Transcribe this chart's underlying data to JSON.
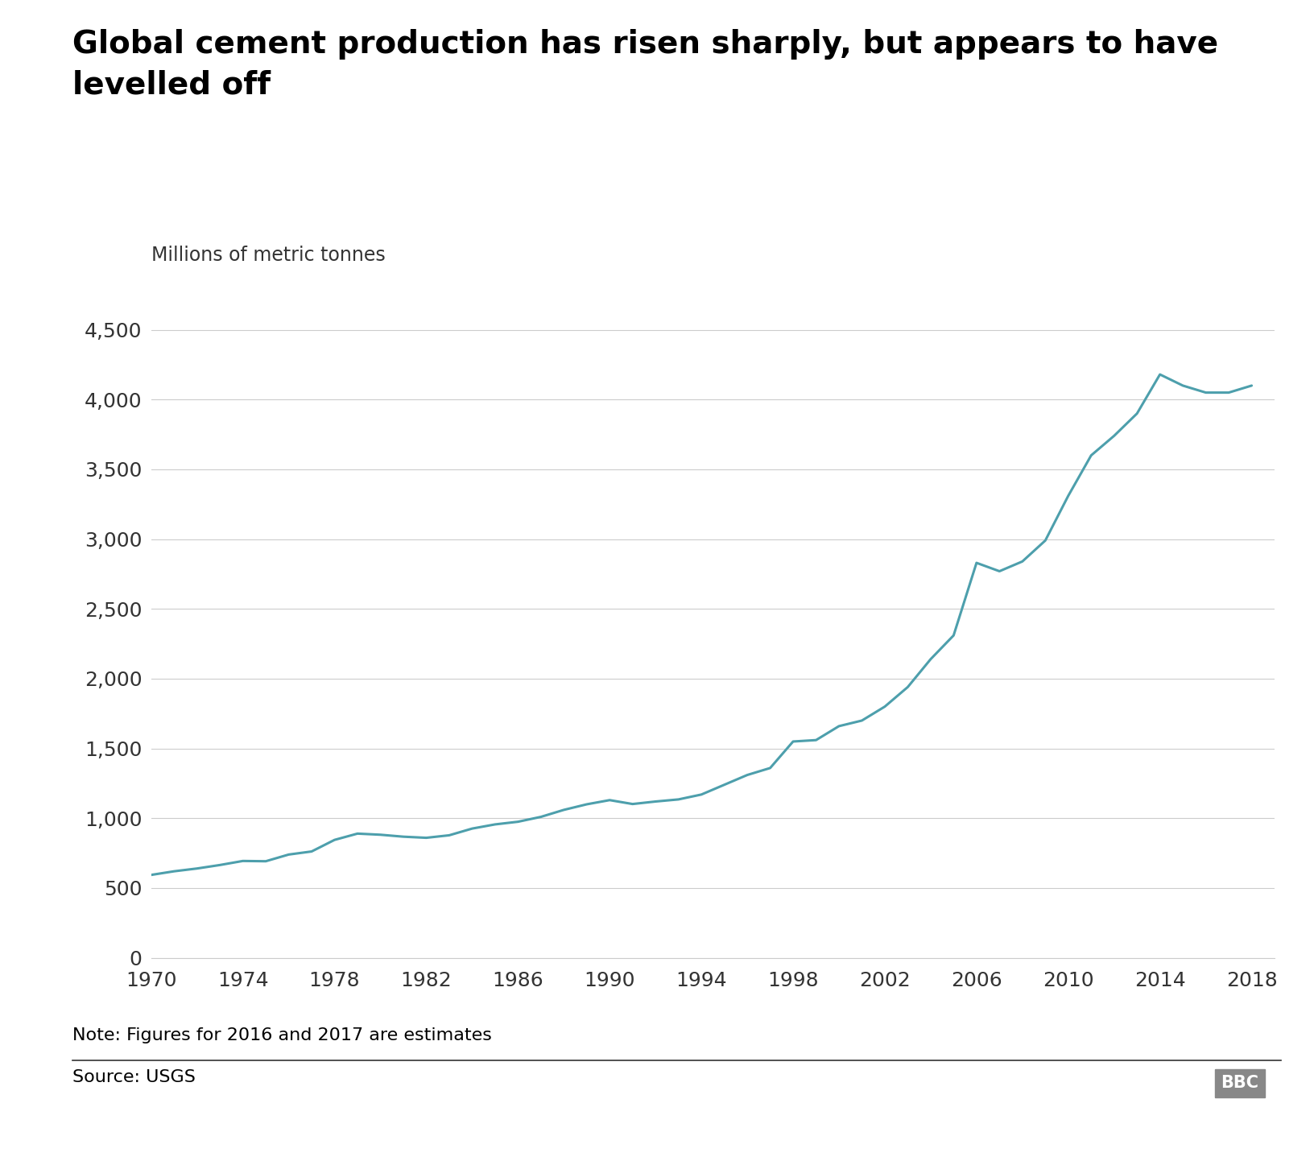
{
  "title_line1": "Global cement production has risen sharply, but appears to have",
  "title_line2": "levelled off",
  "ylabel": "Millions of metric tonnes",
  "note": "Note: Figures for 2016 and 2017 are estimates",
  "source": "Source: USGS",
  "line_color": "#4d9fac",
  "line_width": 2.2,
  "background_color": "#ffffff",
  "xlim": [
    1970,
    2019
  ],
  "ylim": [
    0,
    4700
  ],
  "yticks": [
    0,
    500,
    1000,
    1500,
    2000,
    2500,
    3000,
    3500,
    4000,
    4500
  ],
  "xticks": [
    1970,
    1974,
    1978,
    1982,
    1986,
    1990,
    1994,
    1998,
    2002,
    2006,
    2010,
    2014,
    2018
  ],
  "years": [
    1970,
    1971,
    1972,
    1973,
    1974,
    1975,
    1976,
    1977,
    1978,
    1979,
    1980,
    1981,
    1982,
    1983,
    1984,
    1985,
    1986,
    1987,
    1988,
    1989,
    1990,
    1991,
    1992,
    1993,
    1994,
    1995,
    1996,
    1997,
    1998,
    1999,
    2000,
    2001,
    2002,
    2003,
    2004,
    2005,
    2006,
    2007,
    2008,
    2009,
    2010,
    2011,
    2012,
    2013,
    2014,
    2015,
    2016,
    2017,
    2018
  ],
  "values": [
    594,
    620,
    640,
    665,
    694,
    692,
    740,
    762,
    845,
    890,
    882,
    868,
    860,
    878,
    926,
    956,
    975,
    1010,
    1060,
    1100,
    1130,
    1102,
    1120,
    1135,
    1170,
    1240,
    1310,
    1360,
    1550,
    1560,
    1660,
    1700,
    1800,
    1940,
    2140,
    2310,
    2830,
    2770,
    2840,
    2990,
    3310,
    3600,
    3740,
    3900,
    4180,
    4100,
    4050,
    4050,
    4100
  ],
  "title_fontsize": 28,
  "tick_fontsize": 18,
  "label_fontsize": 17,
  "note_fontsize": 16,
  "source_fontsize": 16
}
